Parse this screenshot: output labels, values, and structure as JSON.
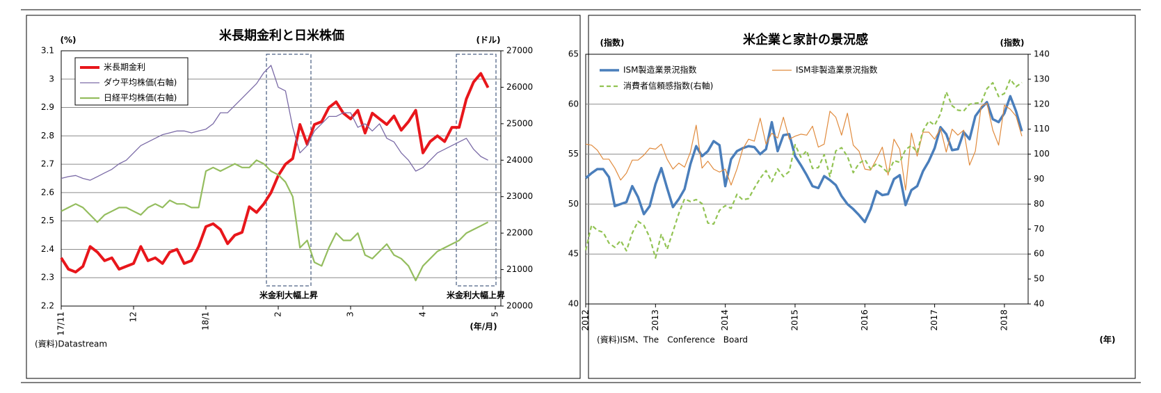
{
  "chart_data": [
    {
      "type": "line",
      "title": "米長期金利と日米株価",
      "y_label": "(%)",
      "y2_label": "(ドル)",
      "x_label": "(年/月)",
      "source": "(資料)Datastream",
      "annotations": [
        "米金利大幅上昇",
        "米金利大幅上昇"
      ],
      "categories": [
        "17/11",
        null,
        null,
        null,
        null,
        null,
        null,
        null,
        null,
        null,
        "12",
        null,
        null,
        null,
        null,
        null,
        null,
        null,
        null,
        null,
        "18/1",
        null,
        null,
        null,
        null,
        null,
        null,
        null,
        null,
        null,
        "2",
        null,
        null,
        null,
        null,
        null,
        null,
        null,
        null,
        null,
        "3",
        null,
        null,
        null,
        null,
        null,
        null,
        null,
        null,
        null,
        "4",
        null,
        null,
        null,
        null,
        null,
        null,
        null,
        null,
        null,
        "5"
      ],
      "ylim": [
        2.2,
        3.1
      ],
      "yticks": [
        2.2,
        2.3,
        2.4,
        2.5,
        2.6,
        2.7,
        2.8,
        2.9,
        3,
        3.1
      ],
      "y2lim": [
        20000,
        27000
      ],
      "y2ticks": [
        20000,
        21000,
        22000,
        23000,
        24000,
        25000,
        26000,
        27000
      ],
      "grid": true,
      "legend": "upper left",
      "series": [
        {
          "name": "米長期金利",
          "color": "#e8161b",
          "values": [
            2.37,
            2.33,
            2.32,
            2.34,
            2.41,
            2.39,
            2.36,
            2.37,
            2.33,
            2.34,
            2.35,
            2.41,
            2.36,
            2.37,
            2.35,
            2.39,
            2.4,
            2.35,
            2.36,
            2.41,
            2.48,
            2.49,
            2.47,
            2.42,
            2.45,
            2.46,
            2.55,
            2.53,
            2.56,
            2.6,
            2.66,
            2.7,
            2.72,
            2.84,
            2.77,
            2.84,
            2.85,
            2.9,
            2.92,
            2.88,
            2.86,
            2.89,
            2.81,
            2.88,
            2.86,
            2.84,
            2.87,
            2.82,
            2.85,
            2.89,
            2.74,
            2.78,
            2.8,
            2.78,
            2.83,
            2.83,
            2.93,
            2.99,
            3.02,
            2.97,
            null
          ]
        },
        {
          "name": "ダウ平均株価(右軸)",
          "color": "#7a6aa6",
          "axis": "y2",
          "values": [
            23500,
            23550,
            23580,
            23500,
            23450,
            23550,
            23650,
            23750,
            23900,
            24000,
            24200,
            24400,
            24500,
            24600,
            24700,
            24750,
            24800,
            24800,
            24750,
            24800,
            24850,
            25000,
            25300,
            25300,
            25500,
            25700,
            25900,
            26100,
            26400,
            26600,
            26000,
            25900,
            24900,
            24200,
            24400,
            24800,
            25000,
            25200,
            25200,
            25300,
            25300,
            24900,
            25000,
            24800,
            25000,
            24600,
            24500,
            24200,
            24000,
            23700,
            23800,
            24000,
            24200,
            24300,
            24400,
            24500,
            24600,
            24300,
            24100,
            24000,
            null
          ]
        },
        {
          "name": "日経平均株価(右軸)",
          "color": "#94bd5e",
          "axis": "y2",
          "values": [
            22600,
            22700,
            22800,
            22700,
            22500,
            22300,
            22500,
            22600,
            22700,
            22700,
            22600,
            22500,
            22700,
            22800,
            22700,
            22900,
            22800,
            22800,
            22700,
            22700,
            23700,
            23800,
            23700,
            23800,
            23900,
            23800,
            23800,
            24000,
            23900,
            23700,
            23600,
            23400,
            23000,
            21600,
            21800,
            21200,
            21100,
            21600,
            22000,
            21800,
            21800,
            22000,
            21400,
            21300,
            21500,
            21700,
            21400,
            21300,
            21100,
            20700,
            21100,
            21300,
            21500,
            21600,
            21700,
            21800,
            22000,
            22100,
            22200,
            22300,
            null
          ]
        }
      ]
    },
    {
      "type": "line",
      "title": "米企業と家計の景況感",
      "y_label": "(指数)",
      "y2_label": "(指数)",
      "x_label": "(年)",
      "source": "(資料)ISM、The　Conference　Board",
      "categories": [
        "2012",
        null,
        null,
        null,
        null,
        null,
        null,
        null,
        null,
        null,
        null,
        null,
        "2013",
        null,
        null,
        null,
        null,
        null,
        null,
        null,
        null,
        null,
        null,
        null,
        "2014",
        null,
        null,
        null,
        null,
        null,
        null,
        null,
        null,
        null,
        null,
        null,
        "2015",
        null,
        null,
        null,
        null,
        null,
        null,
        null,
        null,
        null,
        null,
        null,
        "2016",
        null,
        null,
        null,
        null,
        null,
        null,
        null,
        null,
        null,
        null,
        null,
        "2017",
        null,
        null,
        null,
        null,
        null,
        null,
        null,
        null,
        null,
        null,
        null,
        "2018",
        null,
        null,
        null
      ],
      "ylim": [
        40,
        65
      ],
      "yticks": [
        40,
        45,
        50,
        55,
        60,
        65
      ],
      "y2lim": [
        40,
        140
      ],
      "y2ticks": [
        40,
        50,
        60,
        70,
        80,
        90,
        100,
        110,
        120,
        130,
        140
      ],
      "grid": true,
      "legend": "top",
      "series": [
        {
          "name": "ISM製造業景況指数",
          "color": "#4a7ebb",
          "values": [
            52.6,
            53.1,
            53.5,
            53.5,
            52.7,
            49.8,
            50.0,
            50.2,
            51.8,
            50.7,
            49.0,
            49.8,
            52.0,
            53.6,
            51.6,
            49.7,
            50.5,
            51.5,
            54.0,
            55.8,
            54.8,
            55.3,
            56.3,
            55.9,
            51.8,
            54.5,
            55.3,
            55.6,
            55.8,
            55.7,
            55.0,
            55.5,
            58.2,
            55.3,
            56.9,
            57.0,
            54.8,
            53.9,
            52.9,
            51.8,
            51.6,
            52.8,
            52.4,
            51.9,
            50.8,
            50.0,
            49.5,
            48.9,
            48.2,
            49.5,
            51.3,
            50.9,
            51.0,
            52.5,
            52.9,
            49.9,
            51.4,
            51.8,
            53.3,
            54.3,
            55.6,
            57.7,
            57.0,
            55.4,
            55.5,
            57.2,
            56.5,
            58.8,
            59.6,
            60.2,
            58.5,
            58.2,
            59.1,
            60.8,
            59.3,
            57.3
          ]
        },
        {
          "name": "ISM非製造業景況指数",
          "color": "#e08a3c",
          "values": [
            56.0,
            55.9,
            55.4,
            54.5,
            54.5,
            53.6,
            52.4,
            53.1,
            54.4,
            54.4,
            54.9,
            55.6,
            55.5,
            56.0,
            54.5,
            53.5,
            54.1,
            53.7,
            55.2,
            57.9,
            53.6,
            54.3,
            53.5,
            53.2,
            53.5,
            51.9,
            53.5,
            55.5,
            56.5,
            56.3,
            58.6,
            56.0,
            57.1,
            56.6,
            58.7,
            56.5,
            56.8,
            57.0,
            56.9,
            57.8,
            55.7,
            56.0,
            59.3,
            58.7,
            56.9,
            59.1,
            55.9,
            55.3,
            53.5,
            53.4,
            54.5,
            55.7,
            52.9,
            56.5,
            55.5,
            51.4,
            57.1,
            54.8,
            57.2,
            57.2,
            56.5,
            57.6,
            55.2,
            57.5,
            56.9,
            57.4,
            53.9,
            55.3,
            59.8,
            60.1,
            57.4,
            55.9,
            59.9,
            59.5,
            58.8,
            56.8
          ]
        },
        {
          "name": "消費者信頼感指数(右軸)",
          "color": "#92c353",
          "axis": "y2",
          "dashed": true,
          "values": [
            61.5,
            71.6,
            69.5,
            68.7,
            64.4,
            62.7,
            65.4,
            61.3,
            68.4,
            73.1,
            71.5,
            66.7,
            58.4,
            68.0,
            61.9,
            69.0,
            76.2,
            82.1,
            81.0,
            81.8,
            80.2,
            72.4,
            72.0,
            77.5,
            79.4,
            78.3,
            83.9,
            81.7,
            82.2,
            86.4,
            90.3,
            93.4,
            89.0,
            94.1,
            91.0,
            93.1,
            103.8,
            98.8,
            101.4,
            94.3,
            94.6,
            99.8,
            91.0,
            101.3,
            102.6,
            99.1,
            92.6,
            96.3,
            97.8,
            94.0,
            96.2,
            94.7,
            92.4,
            97.4,
            96.7,
            101.8,
            103.5,
            100.8,
            109.4,
            113.3,
            111.6,
            116.1,
            124.9,
            119.4,
            117.6,
            117.3,
            120.0,
            120.4,
            120.6,
            126.2,
            128.6,
            123.1,
            124.3,
            130.0,
            127.0,
            128.7
          ]
        }
      ]
    }
  ]
}
